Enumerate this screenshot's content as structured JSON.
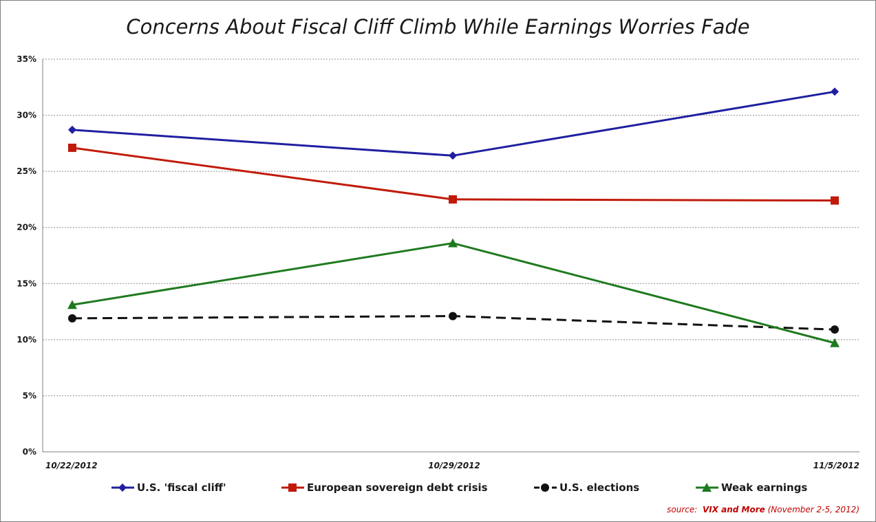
{
  "chart_data": {
    "type": "line",
    "title": "Concerns About Fiscal Cliff Climb While Earnings Worries Fade",
    "categories": [
      "10/22/2012",
      "10/29/2012",
      "11/5/2012"
    ],
    "ylim": [
      0,
      35
    ],
    "yticks": [
      "0%",
      "5%",
      "10%",
      "15%",
      "20%",
      "25%",
      "30%",
      "35%"
    ],
    "ytick_values": [
      0,
      5,
      10,
      15,
      20,
      25,
      30,
      35
    ],
    "grid": true,
    "legend_position": "bottom",
    "series": [
      {
        "name": "U.S. 'fiscal cliff'",
        "values": [
          28.7,
          26.4,
          32.1
        ],
        "color": "#1f1fa0",
        "marker": "diamond",
        "dash": false
      },
      {
        "name": "European sovereign debt crisis",
        "values": [
          27.1,
          22.5,
          22.4
        ],
        "color": "#c01a0a",
        "marker": "square",
        "dash": false
      },
      {
        "name": "U.S. elections",
        "values": [
          11.9,
          12.1,
          10.9
        ],
        "color": "#111111",
        "marker": "circle",
        "dash": true
      },
      {
        "name": "Weak earnings",
        "values": [
          13.1,
          18.6,
          9.7
        ],
        "color": "#1e7a1e",
        "marker": "triangle",
        "dash": false
      }
    ]
  },
  "source": {
    "prefix": "source:",
    "name": "VIX and More",
    "date": "(November 2-5, 2012)"
  }
}
